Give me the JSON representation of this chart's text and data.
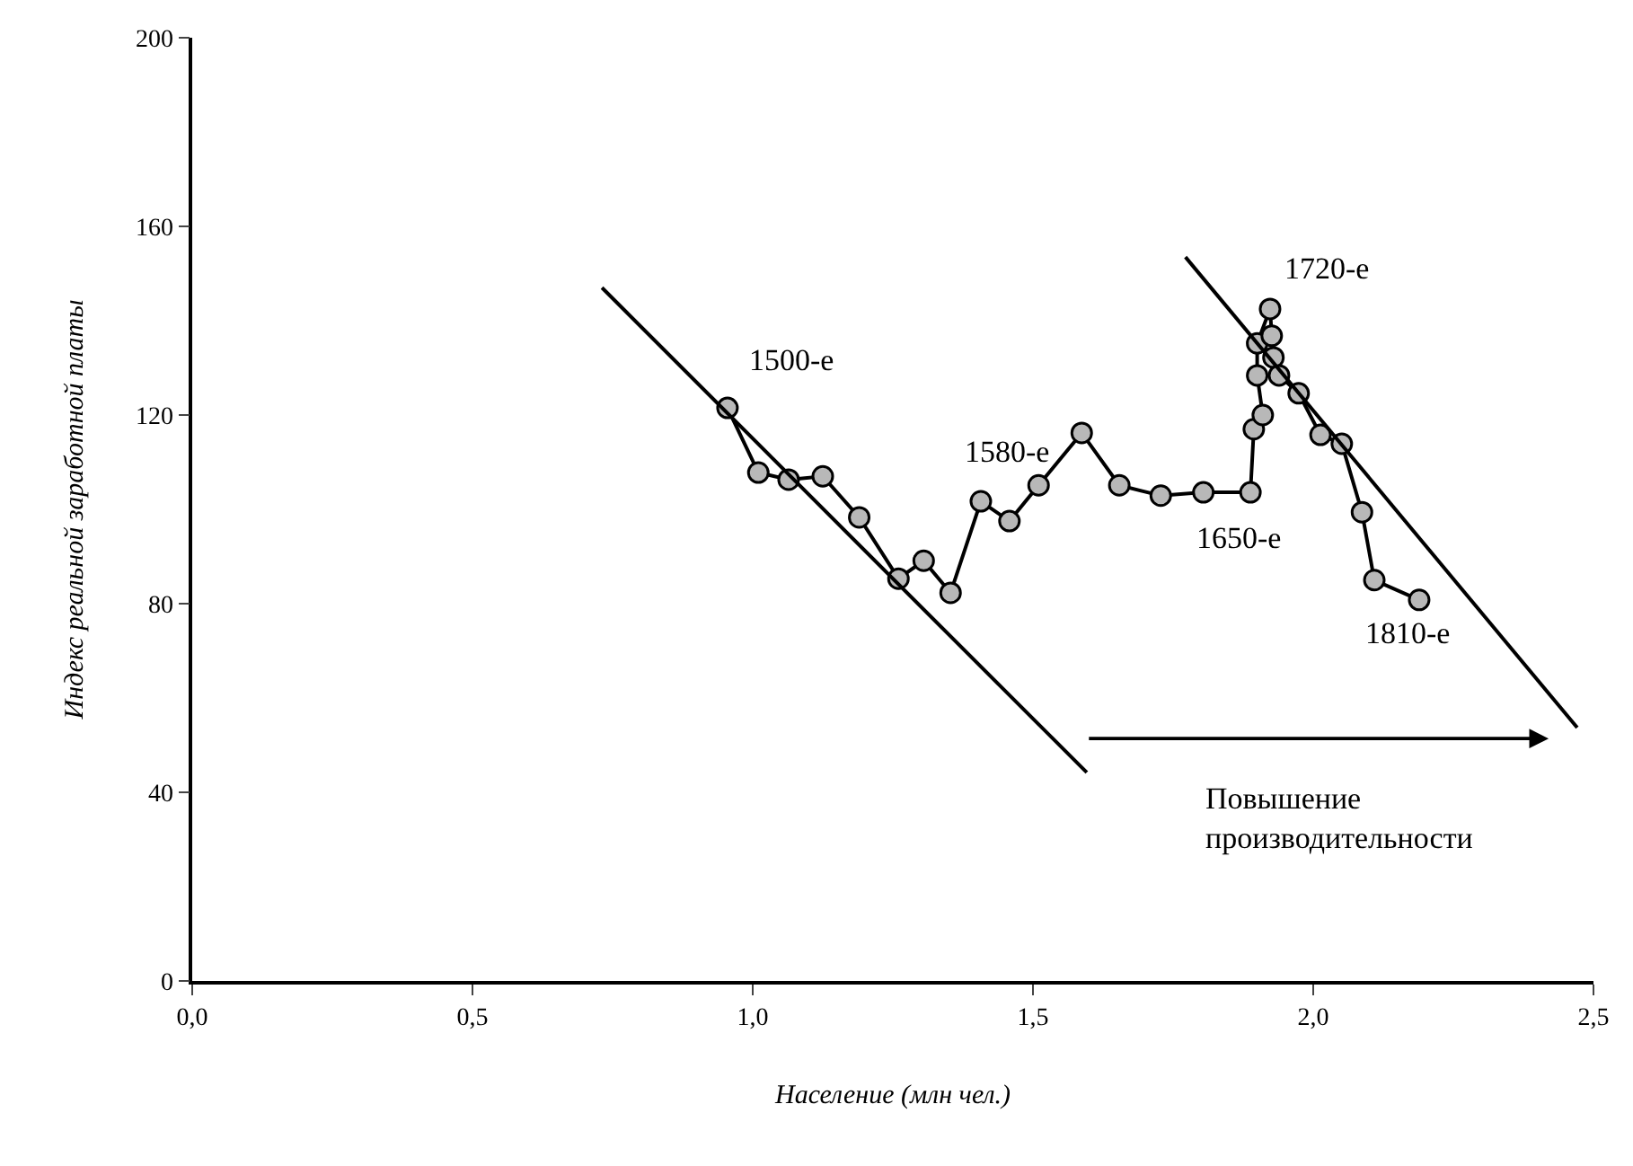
{
  "chart_data": {
    "type": "line",
    "xlabel": "Население (млн чел.)",
    "ylabel": "Индекс реальной заработной платы",
    "xlim": [
      0,
      2.5
    ],
    "ylim": [
      0,
      200
    ],
    "xticks": [
      {
        "value": 0,
        "label": "0,0"
      },
      {
        "value": 0.5,
        "label": "0,5"
      },
      {
        "value": 1,
        "label": "1,0"
      },
      {
        "value": 1.5,
        "label": "1,5"
      },
      {
        "value": 2,
        "label": "2,0"
      },
      {
        "value": 2.5,
        "label": "2,5"
      }
    ],
    "yticks": [
      0,
      40,
      80,
      120,
      160,
      200
    ],
    "series": [
      {
        "color": "#000000",
        "marker": "circle",
        "x": [
          0.955,
          1.01,
          1.064,
          1.125,
          1.19,
          1.26,
          1.305,
          1.353,
          1.407,
          1.458,
          1.51,
          1.587,
          1.654,
          1.728,
          1.804,
          1.888,
          1.894,
          1.91,
          1.9,
          1.9,
          1.923,
          1.926,
          1.929,
          1.939,
          1.974,
          2.013,
          2.051,
          2.087,
          2.109,
          2.189
        ],
        "values": [
          121.5,
          107.8,
          106.3,
          107,
          98.3,
          85.3,
          89.1,
          82.3,
          101.7,
          97.5,
          105.1,
          116.2,
          105.1,
          102.9,
          103.6,
          103.6,
          117,
          120,
          128.4,
          135.2,
          142.5,
          136.8,
          132.2,
          128.4,
          124.6,
          115.8,
          113.9,
          99.4,
          85,
          80.8
        ]
      },
      {
        "type": "line",
        "color": "#000000",
        "marker": "none",
        "x": [
          0.731,
          1.596
        ],
        "values": [
          147,
          44.2
        ]
      },
      {
        "type": "line",
        "color": "#000000",
        "marker": "none",
        "x": [
          1.772,
          2.471
        ],
        "values": [
          153.5,
          53.7
        ]
      }
    ],
    "annotations": [
      "1500-е",
      "1580-е",
      "1720-е",
      "1650-е",
      "1810-е",
      "Повышение\nпроизводительности"
    ]
  }
}
